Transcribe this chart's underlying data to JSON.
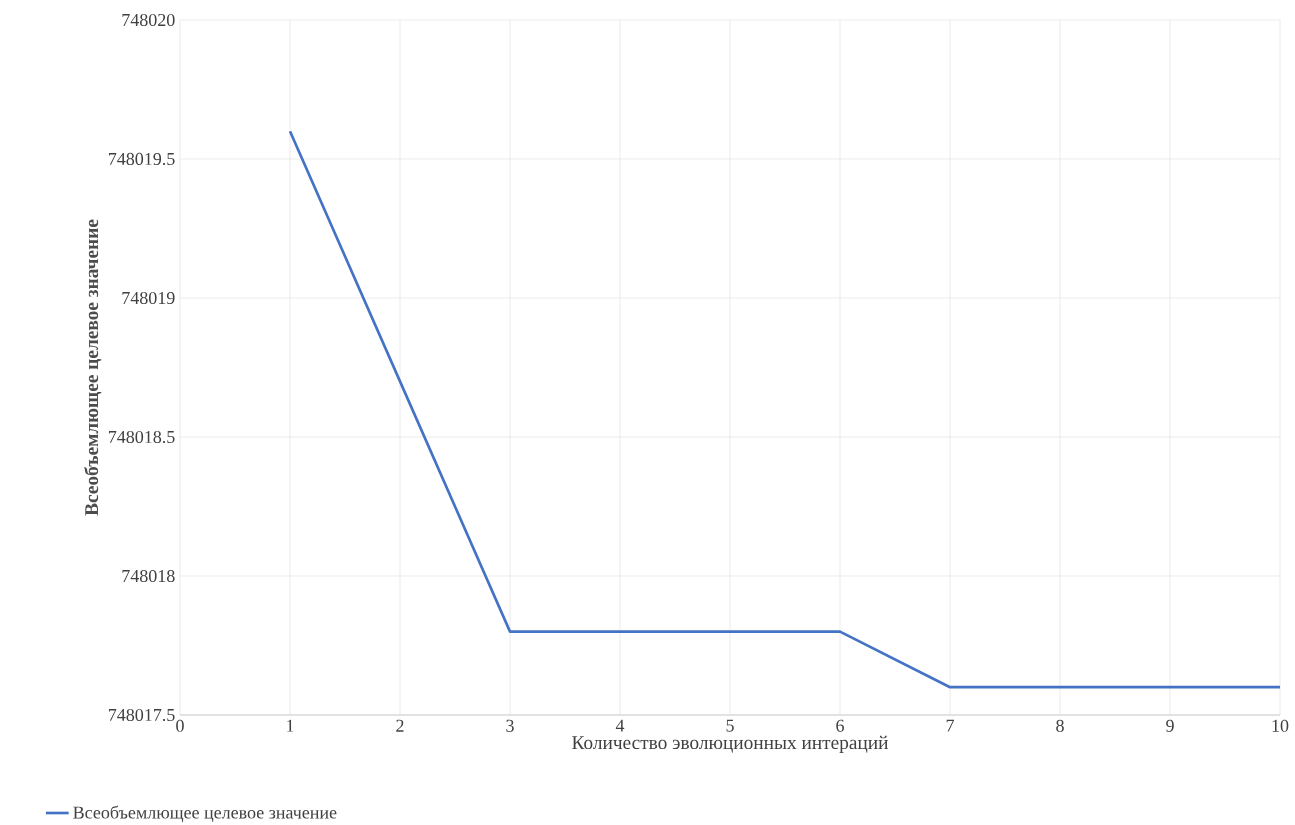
{
  "chart_data": {
    "type": "line",
    "xlabel": "Количество эволюционных интераций",
    "ylabel": "Всеобъемлющее целевое значение",
    "x": [
      1,
      2,
      3,
      4,
      5,
      6,
      7,
      8,
      9,
      10
    ],
    "series": [
      {
        "name": "Всеобъемлющее целевое значение",
        "color": "#4472c4",
        "values": [
          748019.6,
          748018.7,
          748017.8,
          748017.8,
          748017.8,
          748017.8,
          748017.6,
          748017.6,
          748017.6,
          748017.6
        ]
      }
    ],
    "xlim": [
      0,
      10
    ],
    "xticks": [
      0,
      1,
      2,
      3,
      4,
      5,
      6,
      7,
      8,
      9,
      10
    ],
    "ylim": [
      748017.5,
      748020
    ],
    "yticks": [
      748017.5,
      748018,
      748018.5,
      748019,
      748019.5,
      748020
    ],
    "grid": true,
    "legend": "bottom left",
    "marker": "none",
    "line_style": "solid"
  }
}
